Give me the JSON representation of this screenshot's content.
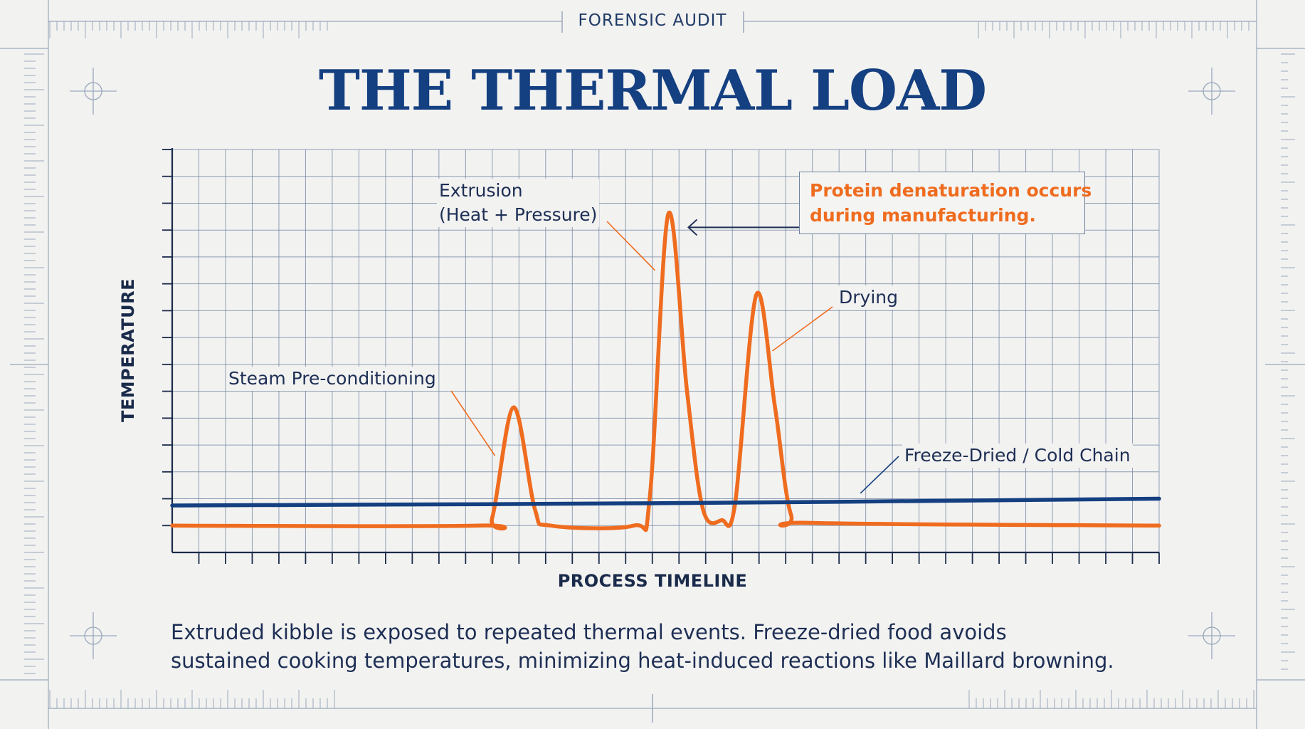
{
  "header": {
    "eyebrow": "FORENSIC AUDIT",
    "title": "THE THERMAL LOAD"
  },
  "chart_data": {
    "type": "line",
    "title": "THE THERMAL LOAD",
    "xlabel": "PROCESS TIMELINE",
    "ylabel": "TEMPERATURE",
    "x": [
      0,
      1,
      2,
      3,
      4,
      5,
      6,
      7,
      8,
      9,
      10,
      11,
      12,
      13,
      14,
      15,
      16,
      17,
      18,
      19,
      20,
      21,
      22,
      23,
      24,
      25,
      26,
      27,
      28,
      29,
      30,
      31,
      32,
      33,
      34,
      35,
      36,
      37
    ],
    "xlim": [
      0,
      37
    ],
    "ylim": [
      0,
      15
    ],
    "grid": true,
    "series": [
      {
        "name": "Extruded kibble",
        "color": "#ef6c1f",
        "points": [
          [
            0,
            1.0
          ],
          [
            11.5,
            1.0
          ],
          [
            12.0,
            1.3
          ],
          [
            12.8,
            5.4
          ],
          [
            13.6,
            1.6
          ],
          [
            14.2,
            1.0
          ],
          [
            17.3,
            1.0
          ],
          [
            17.9,
            2.0
          ],
          [
            18.6,
            12.6
          ],
          [
            19.3,
            6.0
          ],
          [
            19.9,
            1.6
          ],
          [
            20.6,
            1.2
          ],
          [
            21.1,
            1.8
          ],
          [
            21.9,
            9.6
          ],
          [
            22.6,
            5.4
          ],
          [
            23.2,
            1.4
          ],
          [
            24.0,
            1.1
          ],
          [
            37,
            1.0
          ]
        ]
      },
      {
        "name": "Freeze-Dried / Cold Chain",
        "color": "#143f80",
        "points": [
          [
            0,
            1.75
          ],
          [
            18,
            1.83
          ],
          [
            37,
            2.0
          ]
        ]
      }
    ],
    "annotations": [
      {
        "text": "Steam Pre-conditioning",
        "x": 12.1,
        "y": 3.6
      },
      {
        "text_lines": [
          "Extrusion",
          "(Heat + Pressure)"
        ],
        "x": 18.1,
        "y": 10.5
      },
      {
        "text": "Drying",
        "x": 22.5,
        "y": 7.5
      },
      {
        "text": "Freeze-Dried / Cold Chain",
        "x": 25.8,
        "y": 2.2
      }
    ],
    "callout": {
      "lines": [
        "Protein denaturation occurs",
        "during manufacturing."
      ],
      "color": "#ef6c1f",
      "points_to": [
        19.3,
        12.1
      ]
    }
  },
  "caption": {
    "line1": "Extruded kibble is exposed to repeated thermal events. Freeze-dried food avoids",
    "line2": "sustained cooking temperatures, minimizing heat-induced reactions like Maillard browning."
  },
  "colors": {
    "background": "#f2f2f1",
    "title": "#143f80",
    "grid": "#6f839f",
    "kibble": "#ef6c1f",
    "freeze_dried": "#143f80"
  }
}
